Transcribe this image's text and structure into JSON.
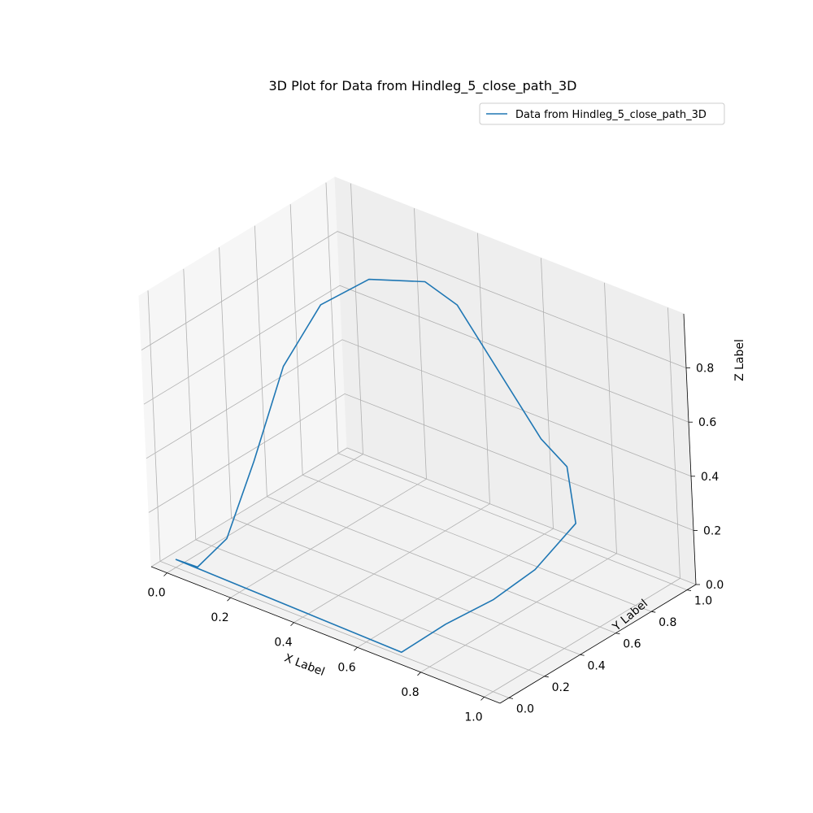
{
  "chart_data": {
    "type": "line3d",
    "title": "3D Plot for Data from Hindleg_5_close_path_3D",
    "xlabel": "X Label",
    "ylabel": "Y Label",
    "zlabel": "Z Label",
    "xlim": [
      -0.05,
      1.05
    ],
    "ylim": [
      -0.05,
      1.05
    ],
    "zlim": [
      0,
      1
    ],
    "xticks": [
      "0.0",
      "0.2",
      "0.4",
      "0.6",
      "0.8",
      "1.0"
    ],
    "yticks": [
      "0.0",
      "0.2",
      "0.4",
      "0.6",
      "0.8",
      "1.0"
    ],
    "zticks": [
      "0.0",
      "0.2",
      "0.4",
      "0.6",
      "0.8"
    ],
    "grid": true,
    "legend": "top-right",
    "series": [
      {
        "name": "Data from Hindleg_5_close_path_3D",
        "color": "#1f77b4",
        "points": [
          {
            "x": 0.0,
            "y": 0.0,
            "z": 0.03
          },
          {
            "x": 0.04,
            "y": 0.05,
            "z": 0.0
          },
          {
            "x": 0.05,
            "y": 0.2,
            "z": 0.05
          },
          {
            "x": 0.06,
            "y": 0.35,
            "z": 0.28
          },
          {
            "x": 0.08,
            "y": 0.5,
            "z": 0.58
          },
          {
            "x": 0.15,
            "y": 0.6,
            "z": 0.8
          },
          {
            "x": 0.25,
            "y": 0.7,
            "z": 0.9
          },
          {
            "x": 0.4,
            "y": 0.75,
            "z": 0.94
          },
          {
            "x": 0.5,
            "y": 0.75,
            "z": 0.9
          },
          {
            "x": 0.75,
            "y": 0.75,
            "z": 0.52
          },
          {
            "x": 0.8,
            "y": 0.8,
            "z": 0.42
          },
          {
            "x": 0.82,
            "y": 0.8,
            "z": 0.22
          },
          {
            "x": 0.8,
            "y": 0.6,
            "z": 0.12
          },
          {
            "x": 0.78,
            "y": 0.4,
            "z": 0.08
          },
          {
            "x": 0.74,
            "y": 0.2,
            "z": 0.05
          },
          {
            "x": 0.7,
            "y": 0.02,
            "z": 0.0
          },
          {
            "x": 0.0,
            "y": 0.0,
            "z": 0.03
          }
        ]
      }
    ]
  }
}
